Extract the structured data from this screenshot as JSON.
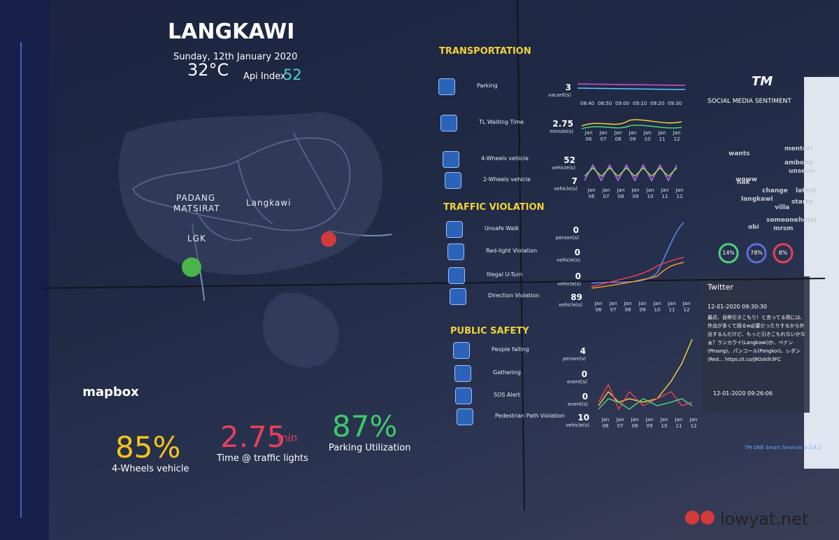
{
  "header": {
    "city": "LANGKAWI",
    "date": "Sunday, 12th January 2020",
    "temperature": "32°C",
    "api_label": "Api Index",
    "api_value": "52"
  },
  "map": {
    "labels": [
      "PADANG",
      "MATSIRAT",
      "Langkawi",
      "LGK"
    ],
    "brand": "mapbox"
  },
  "kpis": [
    {
      "value": "85%",
      "label": "4-Wheels vehicle"
    },
    {
      "value": "2.75",
      "unit": "min",
      "label": "Time @ traffic lights"
    },
    {
      "value": "87%",
      "label": "Parking Utilization"
    }
  ],
  "transportation": {
    "title": "TRANSPORTATION",
    "rows": [
      {
        "label": "Parking",
        "value": "3",
        "unit": "vacant(s)"
      },
      {
        "label": "TL Waiting Time",
        "value": "2.75",
        "unit": "minute(s)"
      },
      {
        "label": "4-Wheels vehicle",
        "value": "52",
        "unit": "vehicle(s)"
      },
      {
        "label": "2-Wheels vehicle",
        "value": "7",
        "unit": "vehicle(s)"
      }
    ],
    "time_ticks": [
      "08:40",
      "08:50",
      "09:00",
      "09:10",
      "09:20",
      "09:30"
    ],
    "date_ticks": [
      "Jan 06",
      "Jan 07",
      "Jan 08",
      "Jan 09",
      "Jan 10",
      "Jan 11",
      "Jan 12"
    ]
  },
  "traffic_violation": {
    "title": "TRAFFIC VIOLATION",
    "rows": [
      {
        "label": "Unsafe Walk",
        "value": "0",
        "unit": "person(s)"
      },
      {
        "label": "Red-light Violation",
        "value": "0",
        "unit": "vehicle(s)"
      },
      {
        "label": "Illegal U-Turn",
        "value": "0",
        "unit": "vehicle(s)"
      },
      {
        "label": "Direction Violation",
        "value": "89",
        "unit": "vehicle(s)"
      }
    ]
  },
  "public_safety": {
    "title": "PUBLIC SAFETY",
    "rows": [
      {
        "label": "People falling",
        "value": "4",
        "unit": "person(s)"
      },
      {
        "label": "Gathering",
        "value": "0",
        "unit": "event(s)"
      },
      {
        "label": "SOS Alert",
        "value": "0",
        "unit": "event(s)"
      },
      {
        "label": "Pedestrian Path Violation",
        "value": "10",
        "unit": "vehicle(s)"
      }
    ]
  },
  "social_media": {
    "brand": "TM",
    "title": "SOCIAL MEDIA SENTIMENT",
    "words": [
      "wants",
      "menteri",
      "ambong",
      "woww",
      "change",
      "langkawi",
      "unseen",
      "villa",
      "starte",
      "someone",
      "mrsm",
      "hotel",
      "latest",
      "obi",
      "nak"
    ],
    "sentiments": [
      "14%",
      "78%",
      "8%"
    ]
  },
  "twitter": {
    "title": "Twitter",
    "posts": [
      {
        "time": "12-01-2020 09:30:30",
        "text": "最近、自称引きこもり！と言ってる割には、外出が多くて困るw必要だったりするから外出するんだけど、もっと引きこもれないかなぁ？ランカウイ(Langkawi)か、ペナン(Pinang)、パンコール(Pangkor)、レダン(Red... https://t.co/j8Osklh3FC"
      },
      {
        "time": "12-01-2020 09:26:06"
      }
    ]
  },
  "footer": {
    "version": "TM ONE Smart Services v 2.4.2",
    "watermark": "lowyat.net"
  }
}
